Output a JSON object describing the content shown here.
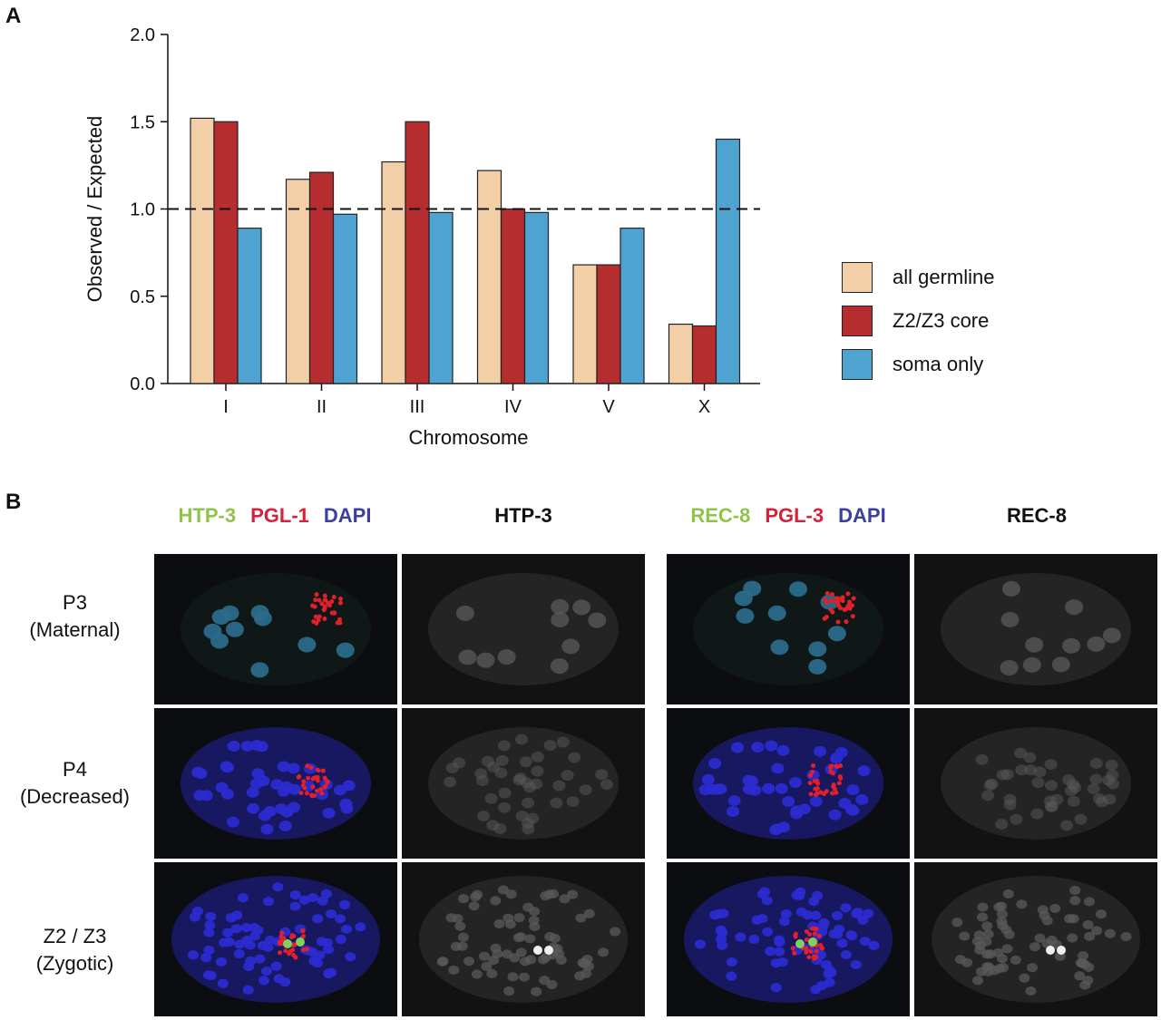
{
  "panel_a": {
    "letter": "A"
  },
  "panel_b": {
    "letter": "B",
    "headers": [
      {
        "parts": [
          {
            "text": "HTP-3",
            "color": "#8fc34a"
          },
          {
            "text": "PGL-1",
            "color": "#d4223a"
          },
          {
            "text": "DAPI",
            "color": "#3b3fa0"
          }
        ]
      },
      {
        "parts": [
          {
            "text": "HTP-3",
            "color": "#111111"
          }
        ]
      },
      {
        "parts": [
          {
            "text": "REC-8",
            "color": "#8fc34a"
          },
          {
            "text": "PGL-3",
            "color": "#d4223a"
          },
          {
            "text": "DAPI",
            "color": "#3b3fa0"
          }
        ]
      },
      {
        "parts": [
          {
            "text": "REC-8",
            "color": "#111111"
          }
        ]
      }
    ],
    "rows": [
      {
        "line1": "P3",
        "line2": "(Maternal)"
      },
      {
        "line1": "P4",
        "line2": "(Decreased)"
      },
      {
        "line1": "Z2 / Z3",
        "line2": "(Zygotic)"
      }
    ]
  },
  "chart_data": {
    "type": "bar",
    "xlabel": "Chromosome",
    "ylabel": "Observed / Expected",
    "ylim": [
      0,
      2.0
    ],
    "yticks": [
      "0.0",
      "0.5",
      "1.0",
      "1.5",
      "2.0"
    ],
    "reference_line": 1.0,
    "categories": [
      "I",
      "II",
      "III",
      "IV",
      "V",
      "X"
    ],
    "series": [
      {
        "name": "all germline",
        "color": "#f2cfa6",
        "values": [
          1.52,
          1.17,
          1.27,
          1.22,
          0.68,
          0.34
        ]
      },
      {
        "name": "Z2/Z3 core",
        "color": "#b52d2f",
        "values": [
          1.5,
          1.21,
          1.5,
          1.0,
          0.68,
          0.33
        ]
      },
      {
        "name": "soma only",
        "color": "#4fa3d1",
        "values": [
          0.89,
          0.97,
          0.98,
          0.98,
          0.89,
          1.4
        ]
      }
    ],
    "legend_position": "right"
  }
}
